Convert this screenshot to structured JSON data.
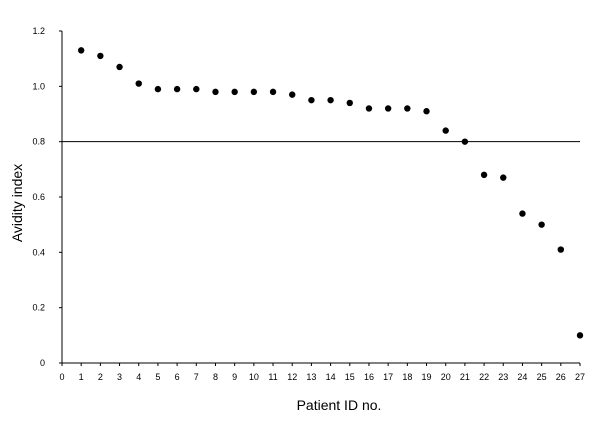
{
  "chart_data": {
    "type": "scatter",
    "title": "",
    "xlabel": "Patient ID no.",
    "ylabel": "Avidity index",
    "xlim": [
      0,
      27
    ],
    "ylim": [
      0,
      1.2
    ],
    "x_ticks": [
      "0",
      "1",
      "2",
      "3",
      "4",
      "5",
      "6",
      "7",
      "8",
      "9",
      "10",
      "11",
      "12",
      "13",
      "14",
      "15",
      "16",
      "17",
      "18",
      "19",
      "20",
      "21",
      "22",
      "23",
      "24",
      "25",
      "26",
      "27"
    ],
    "y_ticks": [
      "0",
      "0.2",
      "0.4",
      "0.6",
      "0.8",
      "1.0",
      "1.2"
    ],
    "grid": false,
    "reference_line": {
      "y": 0.8
    },
    "series": [
      {
        "x": [
          1,
          2,
          3,
          4,
          5,
          6,
          7,
          8,
          9,
          10,
          11,
          12,
          13,
          14,
          15,
          16,
          17,
          18,
          19,
          20,
          21,
          22,
          23,
          24,
          25,
          26,
          27
        ],
        "y": [
          1.13,
          1.11,
          1.07,
          1.01,
          0.99,
          0.99,
          0.99,
          0.98,
          0.98,
          0.98,
          0.98,
          0.97,
          0.95,
          0.95,
          0.94,
          0.92,
          0.92,
          0.92,
          0.91,
          0.84,
          0.8,
          0.68,
          0.67,
          0.54,
          0.5,
          0.41,
          0.1
        ]
      }
    ]
  }
}
